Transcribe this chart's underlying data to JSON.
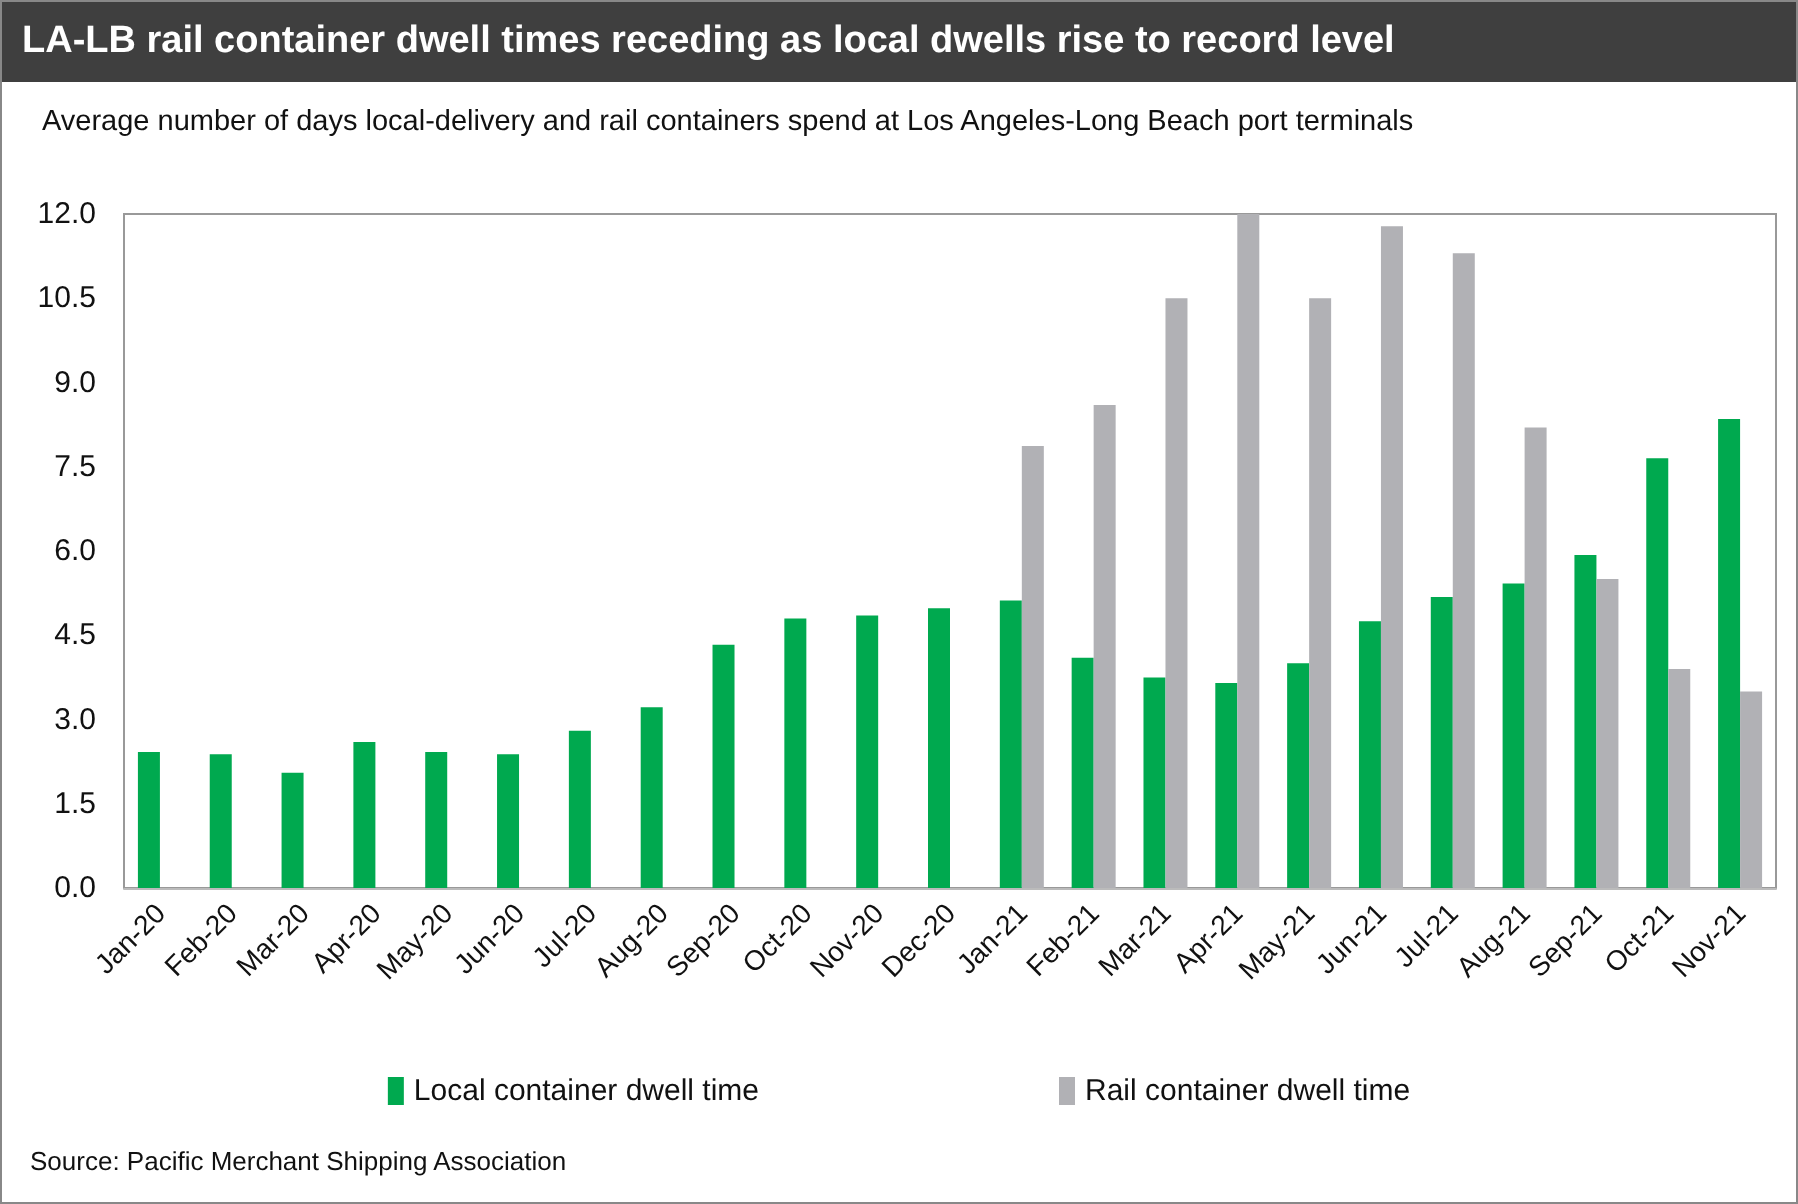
{
  "chart_data": {
    "type": "bar",
    "title": "LA-LB rail container dwell times receding as local dwells rise to record level",
    "subtitle": "Average number of days local-delivery and rail containers spend at Los Angeles-Long Beach port terminals",
    "categories": [
      "Jan-20",
      "Feb-20",
      "Mar-20",
      "Apr-20",
      "May-20",
      "Jun-20",
      "Jul-20",
      "Aug-20",
      "Sep-20",
      "Oct-20",
      "Nov-20",
      "Dec-20",
      "Jan-21",
      "Feb-21",
      "Mar-21",
      "Apr-21",
      "May-21",
      "Jun-21",
      "Jul-21",
      "Aug-21",
      "Sep-21",
      "Oct-21",
      "Nov-21"
    ],
    "series": [
      {
        "name": "Local container dwell time",
        "color": "#00a94f",
        "values": [
          2.42,
          2.38,
          2.05,
          2.6,
          2.42,
          2.38,
          2.8,
          3.22,
          4.33,
          4.8,
          4.85,
          4.98,
          5.12,
          4.1,
          3.75,
          3.65,
          4.0,
          4.75,
          5.18,
          5.42,
          5.93,
          7.65,
          8.35
        ]
      },
      {
        "name": "Rail container dwell time",
        "color": "#b1b1b5",
        "values": [
          null,
          null,
          null,
          null,
          null,
          null,
          null,
          null,
          null,
          null,
          null,
          null,
          7.87,
          8.6,
          10.5,
          12.0,
          10.5,
          11.78,
          11.3,
          8.2,
          5.5,
          3.9,
          3.5
        ]
      }
    ],
    "ylim": [
      0,
      12
    ],
    "yticks": [
      {
        "value": 0,
        "label": "0.0"
      },
      {
        "value": 1.5,
        "label": "1.5"
      },
      {
        "value": 3,
        "label": "3.0"
      },
      {
        "value": 4.5,
        "label": "4.5"
      },
      {
        "value": 6,
        "label": "6.0"
      },
      {
        "value": 7.5,
        "label": "7.5"
      },
      {
        "value": 9,
        "label": "9.0"
      },
      {
        "value": 10.5,
        "label": "10.5"
      },
      {
        "value": 12,
        "label": "12.0"
      }
    ],
    "grid": false,
    "legend": "bottom",
    "annotations": [
      "Source: Pacific Merchant Shipping Association"
    ]
  }
}
